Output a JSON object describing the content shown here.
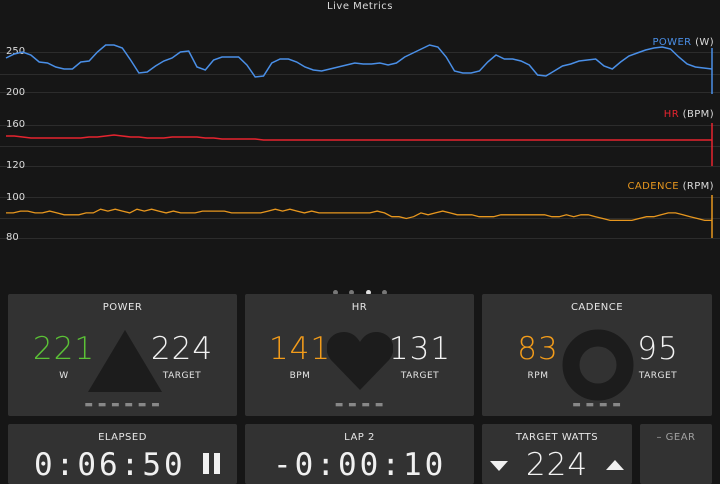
{
  "header": {
    "title": "Live Metrics"
  },
  "charts": {
    "power": {
      "name": "POWER",
      "unit": "(W)",
      "color": "#4a8fe7",
      "ticks": [
        "250",
        "200"
      ],
      "ylim": [
        200,
        255
      ],
      "values": [
        237,
        241,
        243,
        240,
        233,
        232,
        228,
        226,
        226,
        233,
        234,
        243,
        250,
        250,
        247,
        235,
        222,
        223,
        229,
        234,
        237,
        243,
        244,
        228,
        225,
        235,
        238,
        238,
        238,
        230,
        218,
        219,
        232,
        236,
        236,
        233,
        228,
        225,
        224,
        226,
        228,
        230,
        232,
        231,
        231,
        232,
        230,
        232,
        238,
        242,
        246,
        250,
        248,
        238,
        224,
        222,
        222,
        224,
        233,
        240,
        236,
        236,
        234,
        230,
        220,
        219,
        224,
        229,
        231,
        234,
        235,
        236,
        229,
        226,
        233,
        239,
        242,
        245,
        247,
        248,
        246,
        238,
        231,
        228,
        227,
        226
      ]
    },
    "hr": {
      "name": "HR",
      "unit": "(BPM)",
      "color": "#e6242f",
      "ticks": [
        "160",
        "120"
      ],
      "ylim": [
        110,
        170
      ],
      "values": [
        144,
        144,
        143,
        142,
        142,
        142,
        142,
        142,
        142,
        142,
        143,
        143,
        144,
        145,
        144,
        143,
        143,
        142,
        142,
        142,
        143,
        143,
        143,
        143,
        142,
        142,
        141,
        141,
        141,
        141,
        141,
        140,
        140,
        140,
        140,
        140,
        140,
        140,
        140,
        140,
        140,
        140,
        140,
        140,
        140,
        140,
        140,
        140,
        140,
        140,
        140,
        140,
        140,
        140,
        140,
        140,
        140,
        140,
        140,
        140,
        140,
        140,
        140,
        140,
        140,
        140,
        140,
        140,
        140,
        140,
        140,
        140,
        140,
        140,
        140,
        140,
        140,
        140,
        140,
        140,
        140,
        140,
        140,
        140,
        140,
        140
      ]
    },
    "cadence": {
      "name": "CADENCE",
      "unit": "(RPM)",
      "color": "#e6961e",
      "ticks": [
        "100",
        "80"
      ],
      "ylim": [
        74,
        103
      ],
      "values": [
        88,
        88,
        89,
        89,
        88,
        88,
        89,
        88,
        87,
        87,
        87,
        88,
        88,
        90,
        89,
        90,
        89,
        88,
        90,
        89,
        90,
        89,
        88,
        89,
        88,
        88,
        88,
        89,
        89,
        89,
        89,
        88,
        88,
        88,
        88,
        88,
        89,
        90,
        89,
        90,
        89,
        88,
        89,
        88,
        88,
        88,
        88,
        88,
        88,
        88,
        88,
        89,
        88,
        86,
        86,
        85,
        86,
        88,
        87,
        88,
        89,
        88,
        87,
        87,
        87,
        86,
        86,
        86,
        87,
        87,
        87,
        87,
        87,
        87,
        87,
        86,
        86,
        87,
        86,
        87,
        87,
        86,
        85,
        84,
        84,
        84,
        84,
        85,
        86,
        86,
        87,
        88,
        88,
        87,
        86,
        85,
        84,
        84
      ]
    }
  },
  "pager": {
    "count": 4,
    "active": 2
  },
  "cards": {
    "power": {
      "title": "POWER",
      "value": "221",
      "value_color": "#5bc236",
      "value_label": "W",
      "target": "224",
      "target_label": "TARGET",
      "tabs": "▬ ▬ ▬ ▬ ▬ ▬"
    },
    "hr": {
      "title": "HR",
      "value": "141",
      "value_color": "#f39c1a",
      "value_label": "BPM",
      "target": "131",
      "target_label": "TARGET",
      "tabs": "▬ ▬ ▬ ▬"
    },
    "cadence": {
      "title": "CADENCE",
      "value": "83",
      "value_color": "#f39c1a",
      "value_label": "RPM",
      "target": "95",
      "target_label": "TARGET",
      "tabs": "▬ ▬ ▬ ▬"
    }
  },
  "bottom": {
    "elapsed": {
      "title": "ELAPSED",
      "time": "0:06:50",
      "pause_icon": "pause-icon"
    },
    "lap": {
      "title": "LAP  2",
      "time": "-0:00:10"
    },
    "target_watts": {
      "title": "TARGET WATTS",
      "value": "224",
      "down_icon": "triangle-down-icon",
      "up_icon": "triangle-up-icon"
    },
    "gear": {
      "label": "– GEAR"
    }
  }
}
